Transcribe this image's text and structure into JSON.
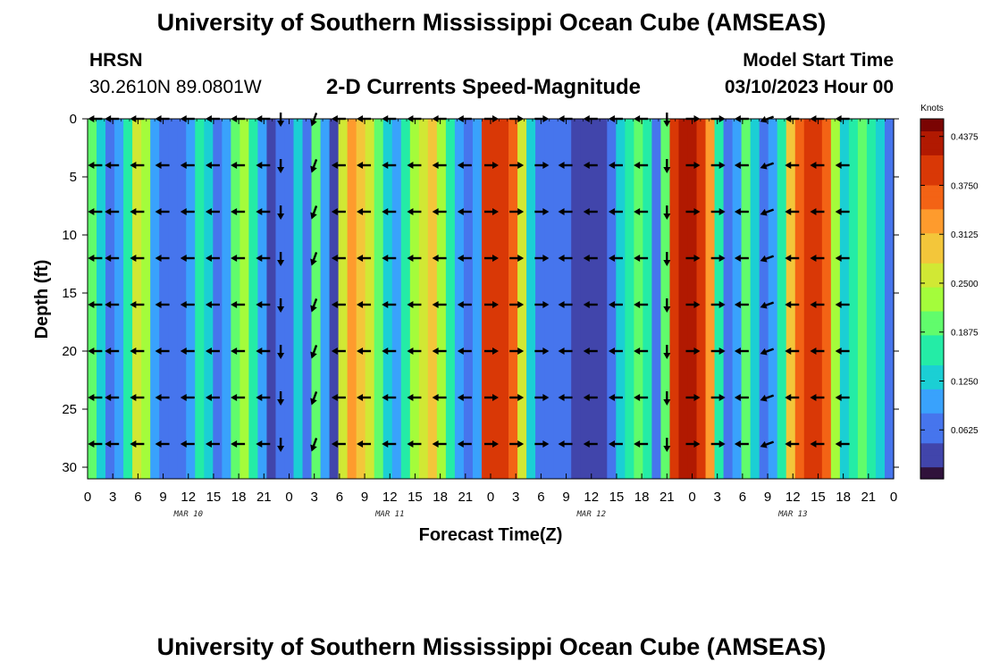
{
  "header": {
    "title": "University of Southern Mississippi Ocean Cube (AMSEAS)",
    "station_name": "HRSN",
    "coordinates": "30.2610N  89.0801W",
    "subtitle": "2-D Currents Speed-Magnitude",
    "model_start_label": "Model Start Time",
    "model_start_value": "03/10/2023 Hour 00"
  },
  "footer": {
    "title": "University of Southern Mississippi Ocean Cube (AMSEAS)"
  },
  "chart_data": {
    "type": "heatmap",
    "title": "2-D Currents Speed-Magnitude",
    "xlabel": "Forecast Time(Z)",
    "ylabel": "Depth (ft)",
    "xlim": [
      0,
      96
    ],
    "ylim": [
      31,
      0
    ],
    "x_tick_labels": [
      "0",
      "3",
      "6",
      "9",
      "12",
      "15",
      "18",
      "21",
      "0",
      "3",
      "6",
      "9",
      "12",
      "15",
      "18",
      "21",
      "0",
      "3",
      "6",
      "9",
      "12",
      "15",
      "18",
      "21",
      "0",
      "3",
      "6",
      "9",
      "12",
      "15",
      "18",
      "21",
      "0"
    ],
    "y_ticks": [
      0,
      5,
      10,
      15,
      20,
      25,
      30
    ],
    "date_labels": [
      {
        "hour": 12,
        "label": "MAR 10"
      },
      {
        "hour": 36,
        "label": "MAR 11"
      },
      {
        "hour": 60,
        "label": "MAR 12"
      },
      {
        "hour": 84,
        "label": "MAR 13"
      }
    ],
    "colorbar": {
      "unit": "Knots",
      "min": 0,
      "max": 0.46,
      "ticks": [
        "0.4375",
        "0.3750",
        "0.3125",
        "0.2500",
        "0.1875",
        "0.1250",
        "0.0625"
      ],
      "tick_values": [
        0.4375,
        0.375,
        0.3125,
        0.25,
        0.1875,
        0.125,
        0.0625
      ],
      "colors": [
        "#30123b",
        "#4145ab",
        "#4675ed",
        "#39a2fc",
        "#1bcfd4",
        "#24eca6",
        "#61fc6c",
        "#a4fc3b",
        "#d1e834",
        "#f3c63a",
        "#fe9b2d",
        "#f36315",
        "#d93806",
        "#b11901",
        "#7a0403"
      ]
    },
    "speed_by_hour": [
      0.2,
      0.12,
      0.05,
      0.1,
      0.17,
      0.25,
      0.22,
      0.1,
      0.06,
      0.05,
      0.06,
      0.1,
      0.17,
      0.12,
      0.06,
      0.1,
      0.19,
      0.24,
      0.18,
      0.1,
      0.02,
      0.08,
      0.05,
      0.14,
      0.08,
      0.2,
      0.1,
      0.04,
      0.27,
      0.32,
      0.3,
      0.25,
      0.19,
      0.13,
      0.1,
      0.16,
      0.22,
      0.27,
      0.29,
      0.24,
      0.16,
      0.1,
      0.06,
      0.1,
      0.38,
      0.4,
      0.39,
      0.35,
      0.25,
      0.13,
      0.06,
      0.05,
      0.06,
      0.06,
      0.03,
      0.03,
      0.02,
      0.04,
      0.06,
      0.12,
      0.17,
      0.2,
      0.16,
      0.08,
      0.2,
      0.41,
      0.44,
      0.43,
      0.4,
      0.32,
      0.17,
      0.06,
      0.1,
      0.2,
      0.14,
      0.07,
      0.1,
      0.16,
      0.28,
      0.37,
      0.4,
      0.4,
      0.36,
      0.24,
      0.14,
      0.16,
      0.19,
      0.17,
      0.12,
      0.08
    ],
    "vector_depths": [
      0,
      4,
      8,
      12,
      16,
      20,
      24,
      28
    ],
    "vector_hours": [
      1,
      3,
      6,
      9,
      12,
      15,
      18,
      21,
      23,
      27,
      30,
      33,
      36,
      39,
      42,
      45,
      48,
      51,
      54,
      57,
      60,
      63,
      66,
      69,
      72,
      75,
      78,
      81,
      84,
      87,
      90
    ],
    "vector_directions_deg": [
      180,
      180,
      180,
      180,
      180,
      180,
      180,
      180,
      270,
      250,
      180,
      180,
      180,
      180,
      180,
      180,
      0,
      0,
      0,
      180,
      180,
      180,
      180,
      270,
      0,
      0,
      180,
      200,
      180,
      180,
      180
    ]
  }
}
